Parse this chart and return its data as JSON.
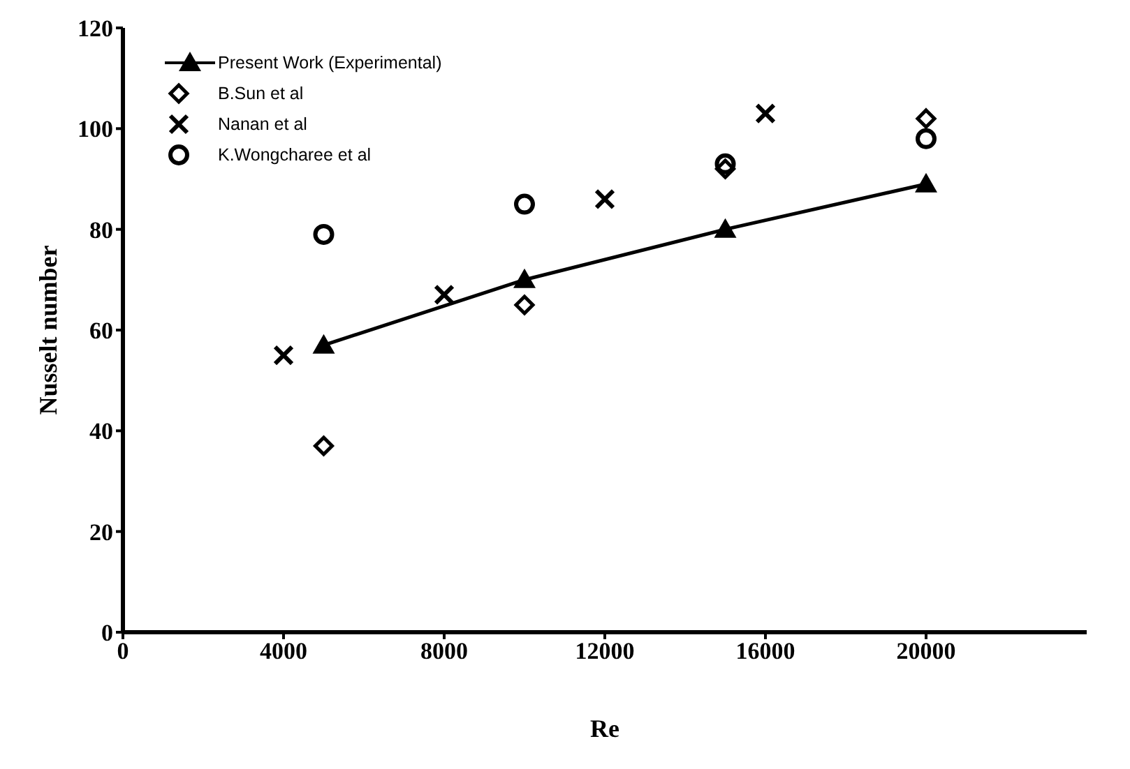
{
  "chart_data": {
    "type": "scatter",
    "xlabel": "Re",
    "ylabel": "Nusselt number",
    "xlim": [
      0,
      24000
    ],
    "xticks": [
      0,
      4000,
      8000,
      12000,
      16000,
      20000
    ],
    "ylim": [
      0,
      120
    ],
    "yticks": [
      0,
      20,
      40,
      60,
      80,
      100,
      120
    ],
    "grid": false,
    "legend": "top left",
    "series": [
      {
        "name": "Present Work (Experimental)",
        "type": "line",
        "marker": "triangle",
        "line_style": "solid",
        "color": "#000000",
        "x": [
          5000,
          10000,
          15000,
          20000
        ],
        "values": [
          57,
          70,
          80,
          89
        ]
      },
      {
        "name": "B.Sun et al",
        "marker": "diamond",
        "color": "#000000",
        "x": [
          5000,
          10000,
          15000,
          20000
        ],
        "values": [
          37,
          65,
          92,
          102
        ]
      },
      {
        "name": "Nanan et al",
        "marker": "cross",
        "color": "#000000",
        "x": [
          4000,
          8000,
          12000,
          16000
        ],
        "values": [
          55,
          67,
          86,
          103
        ]
      },
      {
        "name": "K.Wongcharee et al",
        "marker": "circle",
        "color": "#000000",
        "x": [
          5000,
          10000,
          15000,
          20000
        ],
        "values": [
          79,
          85,
          93,
          98
        ]
      }
    ]
  }
}
